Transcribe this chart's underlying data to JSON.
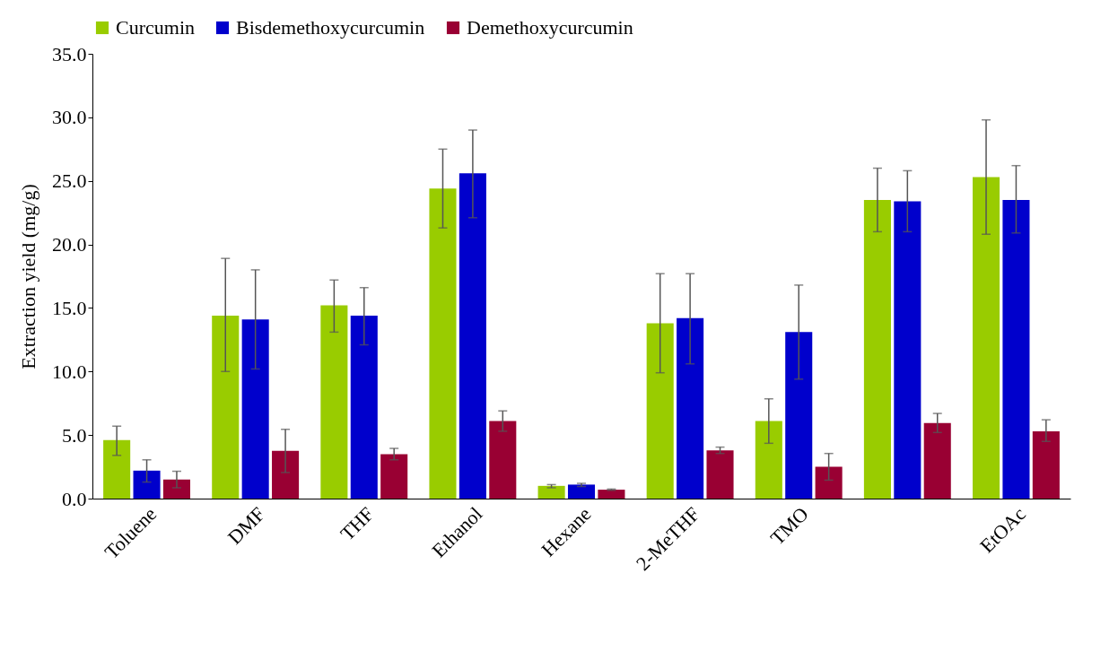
{
  "chart_data": {
    "type": "bar",
    "ylabel": "Extraction yield (mg/g)",
    "categories": [
      "Toluene",
      "DMF",
      "THF",
      "Ethanol",
      "Hexane",
      "2-MeTHF",
      "TMO",
      null,
      "EtOAc"
    ],
    "series": [
      {
        "name": "Curcumin",
        "color": "#99cc00",
        "values": [
          4.6,
          14.4,
          15.2,
          24.4,
          1.0,
          13.8,
          6.1,
          23.5,
          25.3
        ],
        "errors": [
          [
            3.4,
            5.7
          ],
          [
            10.0,
            18.9
          ],
          [
            13.1,
            17.2
          ],
          [
            21.3,
            27.5
          ],
          [
            0.85,
            1.1
          ],
          [
            9.9,
            17.7
          ],
          [
            4.35,
            7.85
          ],
          [
            21.0,
            26.0
          ],
          [
            20.8,
            29.8
          ]
        ]
      },
      {
        "name": "Bisdemethoxycurcumin",
        "color": "#0000cc",
        "values": [
          2.2,
          14.1,
          14.4,
          25.6,
          1.1,
          14.2,
          13.1,
          23.4,
          23.5
        ],
        "errors": [
          [
            1.3,
            3.05
          ],
          [
            10.2,
            18.0
          ],
          [
            12.1,
            16.6
          ],
          [
            22.1,
            29.0
          ],
          [
            0.95,
            1.2
          ],
          [
            10.6,
            17.7
          ],
          [
            9.4,
            16.8
          ],
          [
            21.0,
            25.8
          ],
          [
            20.9,
            26.2
          ]
        ]
      },
      {
        "name": "Demethoxycurcumin",
        "color": "#990033",
        "values": [
          1.5,
          3.75,
          3.5,
          6.1,
          0.7,
          3.8,
          2.5,
          5.95,
          5.3
        ],
        "errors": [
          [
            0.85,
            2.15
          ],
          [
            2.05,
            5.45
          ],
          [
            3.05,
            3.95
          ],
          [
            5.3,
            6.9
          ],
          [
            0.65,
            0.75
          ],
          [
            3.55,
            4.05
          ],
          [
            1.45,
            3.55
          ],
          [
            5.2,
            6.7
          ],
          [
            4.5,
            6.2
          ]
        ]
      }
    ],
    "ylim": [
      0,
      35
    ],
    "yticks": [
      {
        "value": 0,
        "label": "0.0"
      },
      {
        "value": 5,
        "label": "5.0"
      },
      {
        "value": 10,
        "label": "10.0"
      },
      {
        "value": 15,
        "label": "15.0"
      },
      {
        "value": 20,
        "label": "20.0"
      },
      {
        "value": 25,
        "label": "25.0"
      },
      {
        "value": 30,
        "label": "30.0"
      },
      {
        "value": 35,
        "label": "35.0"
      }
    ],
    "grid": false,
    "legend": "top"
  }
}
